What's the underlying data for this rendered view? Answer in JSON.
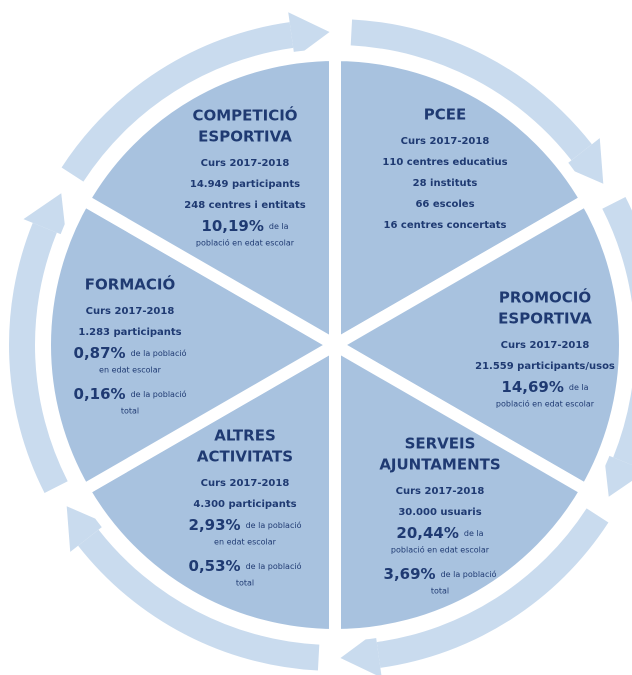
{
  "segments": [
    {
      "title": [
        "COMPETICIÓ",
        "ESPORTIVA"
      ],
      "items": [
        {
          "text": "Curs 2017-2018"
        },
        {
          "text": "14.949 participants"
        },
        {
          "text": "248 centres i entitats"
        },
        {
          "pct": "10,19%",
          "note": [
            "de la",
            "població en edat escolar"
          ]
        }
      ]
    },
    {
      "title": [
        "PCEE"
      ],
      "items": [
        {
          "text": "Curs 2017-2018"
        },
        {
          "text": "110 centres educatius"
        },
        {
          "text": "28 instituts"
        },
        {
          "text": "66 escoles"
        },
        {
          "text": "16 centres concertats"
        }
      ]
    },
    {
      "title": [
        "PROMOCIÓ",
        "ESPORTIVA"
      ],
      "items": [
        {
          "text": "Curs 2017-2018"
        },
        {
          "text": "21.559 participants/usos"
        },
        {
          "pct": "14,69%",
          "note": [
            "de la",
            "població en edat escolar"
          ]
        }
      ]
    },
    {
      "title": [
        "SERVEIS",
        "AJUNTAMENTS"
      ],
      "items": [
        {
          "text": "Curs 2017-2018"
        },
        {
          "text": "30.000 usuaris"
        },
        {
          "pct": "20,44%",
          "note": [
            "de la",
            "població en edat escolar"
          ]
        },
        {
          "pct": "3,69%",
          "note": [
            "de la població",
            "total"
          ]
        }
      ]
    },
    {
      "title": [
        "ALTRES",
        "ACTIVITATS"
      ],
      "items": [
        {
          "text": "Curs 2017-2018"
        },
        {
          "text": "4.300 participants"
        },
        {
          "pct": "2,93%",
          "note": [
            "de la població",
            "en edat escolar"
          ]
        },
        {
          "pct": "0,53%",
          "note": [
            "de la població",
            "total"
          ]
        }
      ]
    },
    {
      "title": [
        "FORMACIÓ"
      ],
      "items": [
        {
          "text": "Curs 2017-2018"
        },
        {
          "text": "1.283 participants"
        },
        {
          "pct": "0,87%",
          "note": [
            "de la població",
            "en edat escolar"
          ]
        },
        {
          "pct": "0,16%",
          "note": [
            "de la població",
            "total"
          ]
        }
      ]
    }
  ]
}
